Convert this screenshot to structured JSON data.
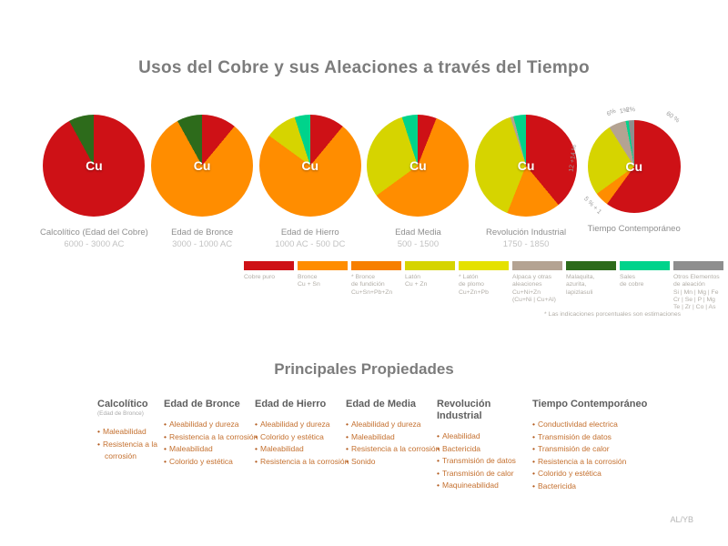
{
  "chart_data": {
    "type": "pie",
    "title": "Usos del Cobre y sus Aleaciones a través del Tiempo",
    "unit": "%",
    "palette": {
      "cobre_puro": "#ce1116",
      "bronce": "#ff8d00",
      "bronce_fundicion": "#f77f00",
      "laton": "#d6d400",
      "laton_plomo": "#e5e100",
      "alpaca": "#b4a392",
      "malaquita": "#2d6b1b",
      "sales": "#00d38b",
      "otros": "#8e8e8e"
    },
    "pies": [
      {
        "era": "Calcolítico (Edad del Cobre)",
        "dates": "6000 - 3000 AC",
        "center_label": "Cu",
        "slices": [
          {
            "name": "Cobre puro",
            "key": "cobre_puro",
            "value": 92
          },
          {
            "name": "Malaquita, azurita, lapizlasuli",
            "key": "malaquita",
            "value": 8
          }
        ]
      },
      {
        "era": "Edad de Bronce",
        "dates": "3000 - 1000 AC",
        "center_label": "Cu",
        "slices": [
          {
            "name": "Cobre puro",
            "key": "cobre_puro",
            "value": 11
          },
          {
            "name": "Bronce",
            "key": "bronce",
            "value": 81
          },
          {
            "name": "Malaquita, azurita, lapizlasuli",
            "key": "malaquita",
            "value": 8
          }
        ]
      },
      {
        "era": "Edad de Hierro",
        "dates": "1000 AC - 500 DC",
        "center_label": "Cu",
        "slices": [
          {
            "name": "Cobre puro",
            "key": "cobre_puro",
            "value": 11
          },
          {
            "name": "Bronce",
            "key": "bronce",
            "value": 74
          },
          {
            "name": "Latón",
            "key": "laton",
            "value": 10
          },
          {
            "name": "Sales de cobre",
            "key": "sales",
            "value": 5
          }
        ]
      },
      {
        "era": "Edad Media",
        "dates": "500 - 1500",
        "center_label": "Cu",
        "slices": [
          {
            "name": "Cobre puro",
            "key": "cobre_puro",
            "value": 6
          },
          {
            "name": "Bronce",
            "key": "bronce",
            "value": 59
          },
          {
            "name": "Latón",
            "key": "laton",
            "value": 30
          },
          {
            "name": "Sales de cobre",
            "key": "sales",
            "value": 5
          }
        ]
      },
      {
        "era": "Revolución Industrial",
        "dates": "1750 - 1850",
        "center_label": "Cu",
        "slices": [
          {
            "name": "Cobre puro",
            "key": "cobre_puro",
            "value": 39
          },
          {
            "name": "Bronce",
            "key": "bronce",
            "value": 17
          },
          {
            "name": "Latón",
            "key": "laton",
            "value": 39
          },
          {
            "name": "Alpaca y otras aleaciones",
            "key": "alpaca",
            "value": 1
          },
          {
            "name": "Sales de cobre",
            "key": "sales",
            "value": 4
          }
        ]
      },
      {
        "era": "Tiempo Contemporáneo",
        "dates": "",
        "center_label": "Cu",
        "slices": [
          {
            "name": "Cobre puro",
            "key": "cobre_puro",
            "value": 60,
            "label": "60 %",
            "label_angle": 38,
            "label_rot": 35,
            "label_dist": 18
          },
          {
            "name": "Bronce",
            "key": "bronce",
            "value": 5,
            "label": "5 % + 1",
            "label_angle": 227,
            "label_rot": 45,
            "label_dist": 12
          },
          {
            "name": "Latón",
            "key": "laton",
            "value": 26,
            "label": "12 +14 %",
            "label_angle": 278,
            "label_rot": -83,
            "label_dist": 16
          },
          {
            "name": "Alpaca y otras aleaciones",
            "key": "alpaca",
            "value": 6,
            "label": "6%",
            "label_angle": 337,
            "label_rot": -27,
            "label_dist": 13
          },
          {
            "name": "Sales de cobre",
            "key": "sales",
            "value": 1,
            "label": "1%",
            "label_angle": 350,
            "label_rot": -12,
            "label_dist": 11
          },
          {
            "name": "Otros elementos de aleación",
            "key": "otros",
            "value": 2,
            "label": "2%",
            "label_angle": 357,
            "label_rot": -3,
            "label_dist": 11
          }
        ]
      }
    ],
    "legend": [
      {
        "key": "cobre_puro",
        "lines": [
          "Cobre puro"
        ]
      },
      {
        "key": "bronce",
        "lines": [
          "Bronce",
          "Cu + Sn"
        ]
      },
      {
        "key": "bronce_fundicion",
        "lines": [
          "* Bronce",
          "de fundición",
          "Cu+Sn+Pb+Zn"
        ]
      },
      {
        "key": "laton",
        "lines": [
          "Latón",
          "Cu + Zn"
        ]
      },
      {
        "key": "laton_plomo",
        "lines": [
          "* Latón",
          "de plomo",
          "Cu+Zn+Pb"
        ]
      },
      {
        "key": "alpaca",
        "lines": [
          "Alpaca y otras",
          "aleaciones",
          "Cu+Ni+Zn",
          "(Cu+Ni | Cu+Al)"
        ]
      },
      {
        "key": "malaquita",
        "lines": [
          "Malaquita,",
          "azurita,",
          "lapizlasuli"
        ]
      },
      {
        "key": "sales",
        "lines": [
          "Sales",
          "de cobre"
        ]
      },
      {
        "key": "otros",
        "lines": [
          "Otros Elementos",
          "de aleación",
          "Si | Mn | Mg | Fe",
          "Cr | Se | P | Mg",
          "Te | Zr | Co | As"
        ]
      }
    ],
    "footnote": "* Las indicaciones porcentuales son estimaciones"
  },
  "properties": {
    "title": "Principales Propiedades",
    "bullet": "•",
    "columns": [
      {
        "header": "Calcolítico",
        "subheader": "(Edad de Bronce)",
        "items": [
          "Maleabilidad",
          "Resistencia a la corrosión"
        ]
      },
      {
        "header": "Edad de Bronce",
        "items": [
          "Aleabilidad y dureza",
          "Resistencia a la corrosión",
          "Maleabilidad",
          "Colorido y estética"
        ]
      },
      {
        "header": "Edad de Hierro",
        "items": [
          "Aleabilidad y dureza",
          "Colorido y estética",
          "Maleabilidad",
          "Resistencia a la corrosión"
        ]
      },
      {
        "header": "Edad de Media",
        "items": [
          "Aleabilidad y dureza",
          "Maleabilidad",
          "Resistencia a la corrosión",
          "Sonido"
        ]
      },
      {
        "header": "Revolución Industrial",
        "items": [
          "Aleabilidad",
          "Bactericida",
          "Transmisión de datos",
          "Transmisión de calor",
          "Maquineabilidad"
        ]
      },
      {
        "header": "Tiempo Contemporáneo",
        "items": [
          "Conductividad electrica",
          "Transmisión de datos",
          "Transmisión de calor",
          "Resistencia a la corrosión",
          "Colorido y estética",
          "Bactericida"
        ]
      }
    ]
  },
  "footer": "AL/YB"
}
